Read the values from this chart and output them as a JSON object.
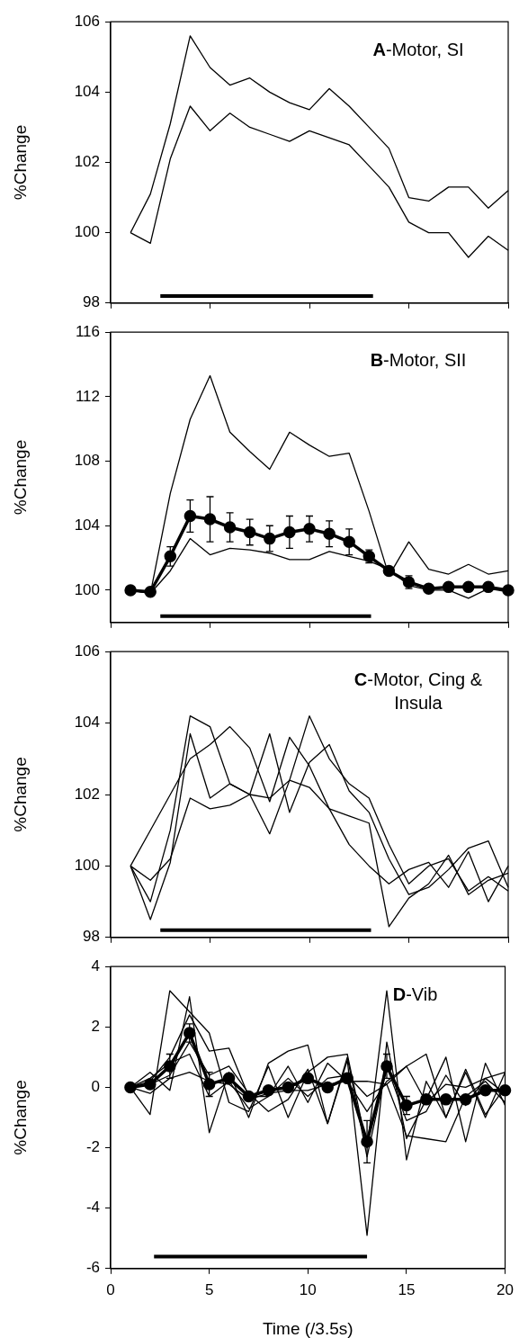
{
  "chart_data": [
    {
      "type": "line",
      "title": "A-Motor, SI",
      "ylabel": "%Change",
      "x": [
        1,
        2,
        3,
        4,
        5,
        6,
        7,
        8,
        9,
        10,
        11,
        12,
        13,
        14,
        15,
        16,
        17,
        18,
        19,
        20
      ],
      "xlim": [
        0,
        20
      ],
      "xticks": [
        0,
        5,
        10,
        15,
        20
      ],
      "ylim": [
        98,
        106
      ],
      "yticks": [
        98,
        100,
        102,
        104,
        106
      ],
      "tick_labels": "y",
      "grid": false,
      "legend": false,
      "marker": "none",
      "series": [
        {
          "color": "#000000",
          "values": [
            100.0,
            101.1,
            103.1,
            105.6,
            104.7,
            104.2,
            104.4,
            104.0,
            103.7,
            103.5,
            104.1,
            103.6,
            103.0,
            102.4,
            101.0,
            100.9,
            101.3,
            101.3,
            100.7,
            101.2
          ]
        },
        {
          "color": "#000000",
          "values": [
            100.0,
            99.7,
            102.1,
            103.6,
            102.9,
            103.4,
            103.0,
            102.8,
            102.6,
            102.9,
            102.7,
            102.5,
            101.9,
            101.3,
            100.3,
            100.0,
            100.0,
            99.3,
            99.9,
            99.5
          ]
        },
        {
          "color": "#000000",
          "x": [
            2.5,
            13.2
          ],
          "values": [
            98.2,
            98.2
          ]
        }
      ]
    },
    {
      "type": "line",
      "title": "B-Motor, SII",
      "ylabel": "%Change",
      "x": [
        1,
        2,
        3,
        4,
        5,
        6,
        7,
        8,
        9,
        10,
        11,
        12,
        13,
        14,
        15,
        16,
        17,
        18,
        19,
        20
      ],
      "xlim": [
        0,
        20
      ],
      "xticks": [
        0,
        5,
        10,
        15,
        20
      ],
      "ylim": [
        98,
        116
      ],
      "yticks": [
        100,
        104,
        108,
        112,
        116
      ],
      "tick_labels": "y",
      "grid": false,
      "legend": false,
      "marker": "none",
      "series": [
        {
          "color": "#000000",
          "values": [
            100.0,
            99.8,
            106.0,
            110.6,
            113.3,
            109.8,
            108.6,
            107.5,
            109.8,
            109.0,
            108.3,
            108.5,
            104.9,
            100.9,
            103.0,
            101.3,
            101.0,
            101.6,
            101.0,
            101.2
          ]
        },
        {
          "color": "#000000",
          "values": [
            100.0,
            99.8,
            101.2,
            103.2,
            102.2,
            102.6,
            102.5,
            102.3,
            101.9,
            101.9,
            102.4,
            102.1,
            101.8,
            101.3,
            100.3,
            100.0,
            100.0,
            99.5,
            100.1,
            99.9
          ]
        },
        {
          "color": "#000000",
          "marker": "circle",
          "values": [
            100.0,
            99.9,
            102.1,
            104.6,
            104.4,
            103.9,
            103.6,
            103.2,
            103.6,
            103.8,
            103.5,
            103.0,
            102.1,
            101.2,
            100.5,
            100.1,
            100.2,
            100.2,
            100.2,
            100.0
          ],
          "errors": [
            null,
            null,
            0.6,
            1.0,
            1.4,
            0.9,
            0.8,
            0.8,
            1.0,
            0.8,
            0.8,
            0.8,
            0.4,
            null,
            0.4,
            null,
            null,
            null,
            null,
            null
          ]
        },
        {
          "color": "#000000",
          "x": [
            2.5,
            13.1
          ],
          "values": [
            98.4,
            98.4
          ]
        }
      ]
    },
    {
      "type": "line",
      "title": "C-Motor, Cing & Insula",
      "ylabel": "%Change",
      "x": [
        1,
        2,
        3,
        4,
        5,
        6,
        7,
        8,
        9,
        10,
        11,
        12,
        13,
        14,
        15,
        16,
        17,
        18,
        19,
        20
      ],
      "xlim": [
        0,
        20
      ],
      "xticks": [
        0,
        5,
        10,
        15,
        20
      ],
      "ylim": [
        98,
        106
      ],
      "yticks": [
        98,
        100,
        102,
        104,
        106
      ],
      "tick_labels": "y",
      "grid": false,
      "legend": false,
      "marker": "none",
      "series": [
        {
          "color": "#000000",
          "values": [
            100.0,
            99.0,
            101.0,
            104.2,
            103.9,
            102.3,
            102.0,
            100.9,
            102.4,
            104.2,
            103.0,
            102.3,
            101.9,
            100.6,
            99.5,
            100.0,
            100.2,
            99.3,
            99.7,
            99.3
          ]
        },
        {
          "color": "#000000",
          "values": [
            100.0,
            98.5,
            100.1,
            103.7,
            101.9,
            102.3,
            102.0,
            103.7,
            101.5,
            102.9,
            103.4,
            102.1,
            101.5,
            100.2,
            99.2,
            99.4,
            99.9,
            100.5,
            100.7,
            99.4
          ]
        },
        {
          "color": "#000000",
          "values": [
            100.0,
            101.0,
            102.0,
            103.0,
            103.4,
            103.9,
            103.3,
            101.8,
            103.6,
            102.8,
            101.6,
            100.6,
            100.0,
            99.5,
            99.9,
            100.1,
            99.4,
            100.4,
            99.0,
            100.0
          ]
        },
        {
          "color": "#000000",
          "values": [
            100.0,
            99.6,
            100.2,
            101.9,
            101.6,
            101.7,
            102.0,
            101.9,
            102.4,
            102.2,
            101.6,
            101.4,
            101.2,
            98.3,
            99.1,
            99.5,
            100.3,
            99.2,
            99.6,
            99.8
          ]
        },
        {
          "color": "#000000",
          "x": [
            2.5,
            13.1
          ],
          "values": [
            98.2,
            98.2
          ]
        }
      ]
    },
    {
      "type": "line",
      "title": "D-Vib",
      "xlabel": "Time (/3.5s)",
      "ylabel": "%Change",
      "x": [
        1,
        2,
        3,
        4,
        5,
        6,
        7,
        8,
        9,
        10,
        11,
        12,
        13,
        14,
        15,
        16,
        17,
        18,
        19,
        20
      ],
      "xlim": [
        0,
        20
      ],
      "xticks": [
        0,
        5,
        10,
        15,
        20
      ],
      "ylim": [
        -6,
        4
      ],
      "yticks": [
        -6,
        -4,
        -2,
        0,
        2,
        4
      ],
      "grid": false,
      "legend": false,
      "marker": "none",
      "series": [
        {
          "color": "#000000",
          "values": [
            0,
            -0.9,
            3.2,
            2.5,
            1.8,
            -0.5,
            -0.8,
            0.7,
            -1.0,
            0.5,
            1.0,
            1.1,
            -2.0,
            3.2,
            -2.4,
            0.2,
            -1.0,
            0.5,
            -1.0,
            0.5
          ]
        },
        {
          "color": "#000000",
          "values": [
            0,
            0.5,
            -0.1,
            3.0,
            -1.5,
            0.5,
            -1.0,
            0.8,
            1.2,
            1.4,
            -1.2,
            0.9,
            -4.9,
            1.5,
            -1.7,
            -0.4,
            1.0,
            -1.8,
            0.8,
            -0.6
          ]
        },
        {
          "color": "#000000",
          "values": [
            0,
            0.2,
            1.0,
            2.4,
            1.2,
            1.3,
            -0.3,
            -0.3,
            0.7,
            -0.5,
            0.8,
            0.2,
            -0.8,
            0.2,
            0.7,
            1.1,
            -1.0,
            0.6,
            -0.9,
            0.0
          ]
        },
        {
          "color": "#000000",
          "values": [
            0,
            -0.2,
            0.3,
            0.5,
            0.2,
            0.1,
            -0.4,
            -0.2,
            -0.1,
            -0.1,
            0.1,
            0.2,
            0.2,
            0.1,
            -1.6,
            -1.7,
            -1.8,
            -0.3,
            0.2,
            -0.5
          ]
        },
        {
          "color": "#000000",
          "values": [
            0,
            0.3,
            0.8,
            1.1,
            -0.3,
            0.2,
            -0.7,
            -0.3,
            0.3,
            -0.3,
            0.3,
            0.4,
            -0.3,
            0.1,
            0.7,
            -0.5,
            0.1,
            0.0,
            0.3,
            0.5
          ]
        },
        {
          "color": "#000000",
          "values": [
            0,
            0.1,
            0.4,
            1.5,
            0.4,
            0.7,
            -0.2,
            -0.8,
            -0.4,
            0.6,
            -1.2,
            1.0,
            -2.3,
            0.7,
            -1.1,
            -0.8,
            0.4,
            -0.6,
            0.3,
            -0.2
          ]
        },
        {
          "color": "#000000",
          "marker": "circle",
          "values": [
            0,
            0.1,
            0.7,
            1.8,
            0.1,
            0.3,
            -0.3,
            -0.1,
            0.0,
            0.3,
            0.0,
            0.3,
            -1.8,
            0.7,
            -0.6,
            -0.4,
            -0.4,
            -0.4,
            -0.1,
            -0.1
          ],
          "errors": [
            null,
            null,
            0.4,
            0.3,
            0.4,
            null,
            null,
            null,
            null,
            null,
            null,
            null,
            0.7,
            0.4,
            0.3,
            null,
            null,
            null,
            null,
            null
          ]
        },
        {
          "color": "#000000",
          "x": [
            2.2,
            13.0
          ],
          "values": [
            -5.6,
            -5.6
          ]
        }
      ]
    }
  ]
}
